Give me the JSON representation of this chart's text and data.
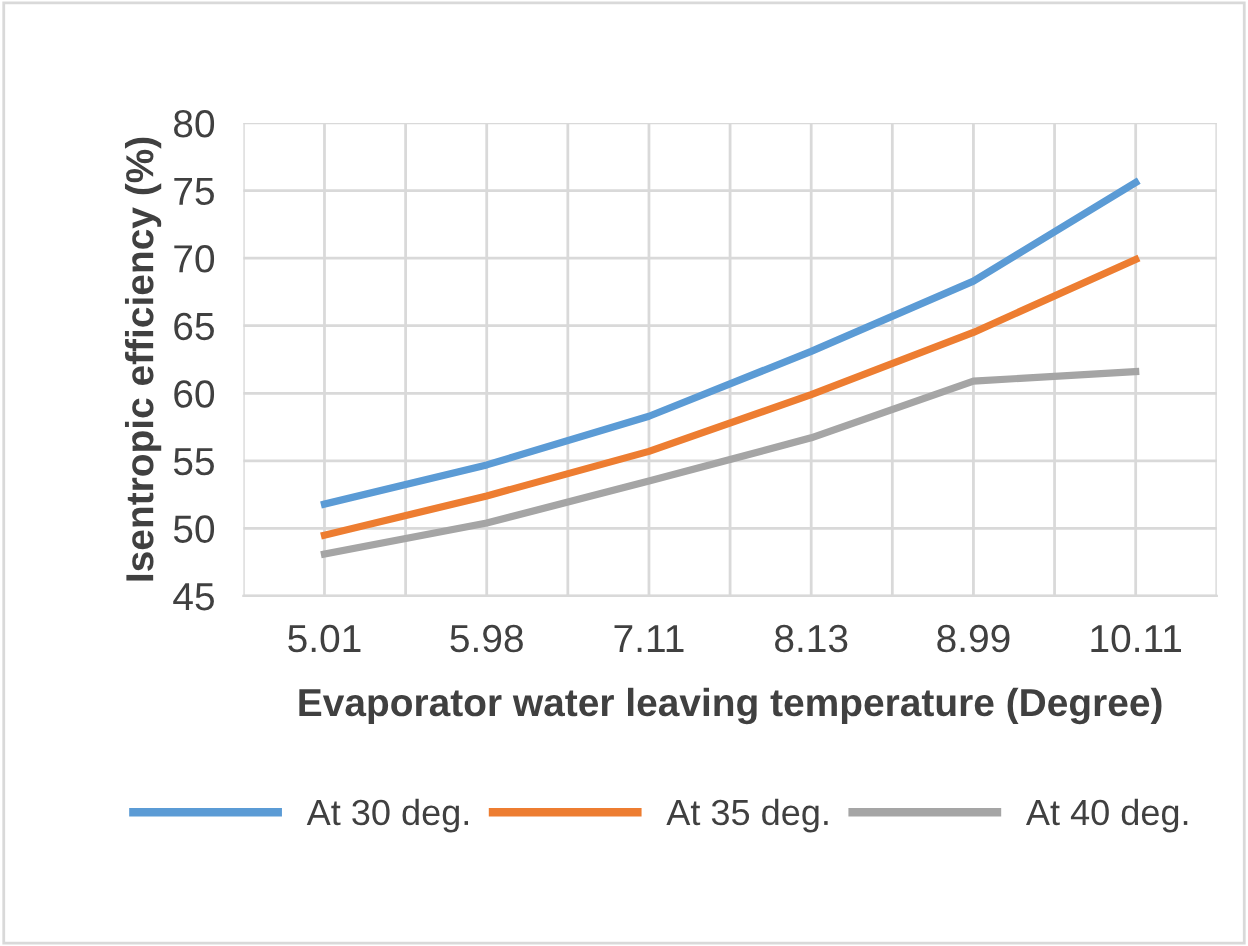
{
  "chart_data": {
    "type": "line",
    "xlabel": "Evaporator water leaving temperature (Degree)",
    "ylabel": "Isentropic efficiency (%)",
    "categories": [
      "5.01",
      "5.98",
      "7.11",
      "8.13",
      "8.99",
      "10.11"
    ],
    "series": [
      {
        "name": "At 30 deg.",
        "color": "#5b9bd5",
        "values": [
          51.8,
          54.7,
          58.3,
          63.1,
          68.3,
          75.6
        ]
      },
      {
        "name": "At 35 deg.",
        "color": "#ed7d31",
        "values": [
          49.5,
          52.4,
          55.7,
          59.9,
          64.5,
          69.9
        ]
      },
      {
        "name": "At 40 deg.",
        "color": "#a5a5a5",
        "values": [
          48.1,
          50.4,
          53.5,
          56.7,
          60.9,
          61.6
        ]
      }
    ],
    "ylim": [
      45,
      80
    ],
    "yticks": [
      45,
      50,
      55,
      60,
      65,
      70,
      75,
      80
    ],
    "grid": true,
    "legend": "bottom"
  }
}
